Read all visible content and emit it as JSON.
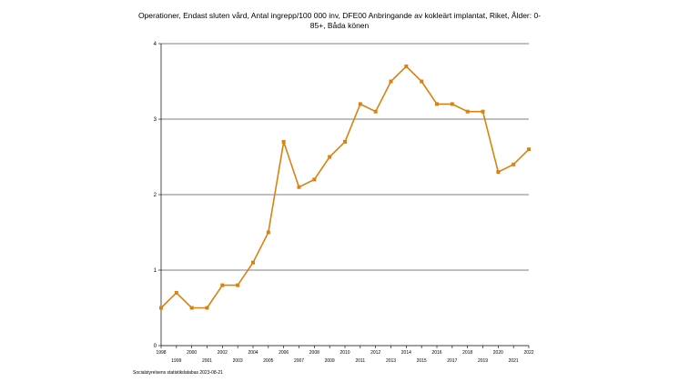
{
  "chart_data": {
    "type": "line",
    "title": "Operationer, Endast sluten vård, Antal ingrepp/100 000 inv, DFE00 Anbringande av kokleärt implantat, Riket, Ålder: 0-85+, Båda könen",
    "x": [
      "1998",
      "1999",
      "2000",
      "2001",
      "2002",
      "2003",
      "2004",
      "2005",
      "2006",
      "2007",
      "2008",
      "2009",
      "2010",
      "2011",
      "2012",
      "2013",
      "2014",
      "2015",
      "2016",
      "2017",
      "2018",
      "2019",
      "2020",
      "2021",
      "2022"
    ],
    "series": [
      {
        "values": [
          0.5,
          0.7,
          0.5,
          0.5,
          0.8,
          0.8,
          1.1,
          1.5,
          2.7,
          2.1,
          2.2,
          2.5,
          2.7,
          3.2,
          3.1,
          3.5,
          3.7,
          3.5,
          3.2,
          3.2,
          3.1,
          3.1,
          2.3,
          2.4,
          2.6
        ]
      }
    ],
    "yticks": [
      "0",
      "1",
      "2",
      "3",
      "4"
    ],
    "ylim": [
      0,
      4
    ],
    "grid": true,
    "color": "#d9820f"
  },
  "footer": {
    "source": "Socialstyrelsens statistikdatabas 2023-08-21"
  }
}
